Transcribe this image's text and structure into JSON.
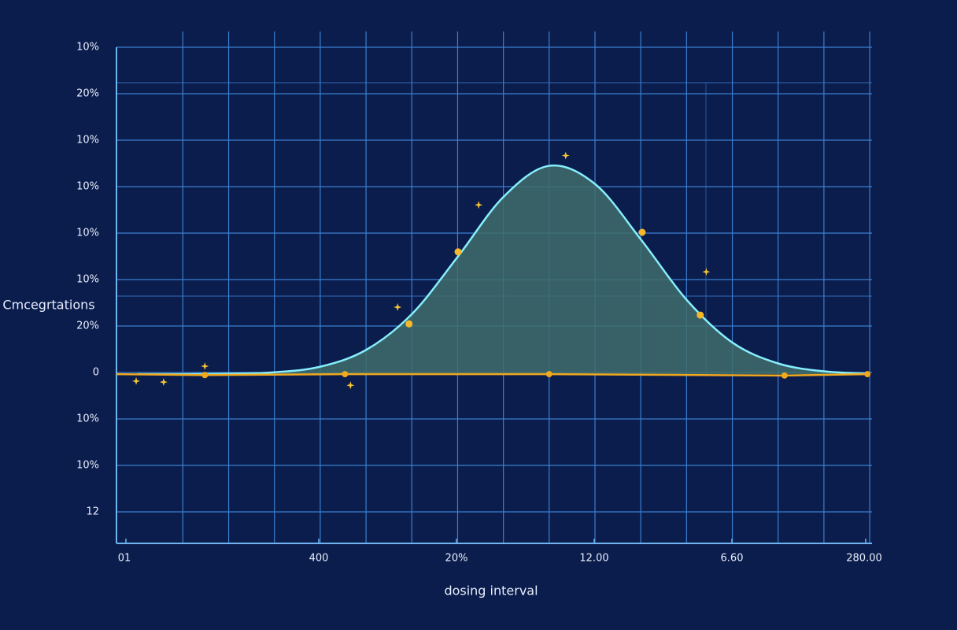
{
  "chart_data": {
    "type": "line",
    "y_label": "Cmcegrtations",
    "x_label": "dosing interval",
    "ytick_labels": [
      "10%",
      "20%",
      "10%",
      "10%",
      "10%",
      "10%",
      "20%",
      "0",
      "10%",
      "10%",
      "12"
    ],
    "xtick_labels": [
      "01",
      "400",
      "20%",
      "12.00",
      "6.60",
      "280.00"
    ],
    "xlim": [
      -0.45,
      16.05
    ],
    "ylim": [
      -3.64,
      7.03
    ],
    "grid": true,
    "series": [
      {
        "name": "curve",
        "kind": "area",
        "color": "#86eefc",
        "fill": "#3f6d6b",
        "x": [
          0,
          1,
          2,
          3,
          4,
          5,
          6,
          7,
          8,
          9,
          10,
          11,
          12,
          13,
          14,
          15,
          16
        ],
        "values": [
          0,
          0,
          0.01,
          0.04,
          0.16,
          0.52,
          1.29,
          2.52,
          3.81,
          4.48,
          4.09,
          2.9,
          1.6,
          0.68,
          0.23,
          0.06,
          0.01
        ]
      },
      {
        "name": "curve points",
        "kind": "dots",
        "color": "#f5b82a",
        "x": [
          5.94,
          7.01,
          11.03,
          12.3
        ],
        "values": [
          1.08,
          2.63,
          3.05,
          1.27
        ]
      },
      {
        "name": "baseline",
        "kind": "line",
        "color": "#f0a81e",
        "x": [
          -0.45,
          1.48,
          4.54,
          9.0,
          14.14,
          15.95
        ],
        "values": [
          0,
          -0.02,
          0,
          0,
          -0.03,
          0
        ]
      },
      {
        "name": "observations",
        "kind": "stars",
        "color": "#f7c531",
        "x": [
          -0.02,
          0.58,
          1.48,
          4.66,
          5.69,
          7.46,
          9.36,
          12.43
        ],
        "values": [
          -0.15,
          -0.17,
          0.17,
          -0.24,
          1.44,
          3.64,
          4.7,
          2.2
        ]
      }
    ]
  }
}
